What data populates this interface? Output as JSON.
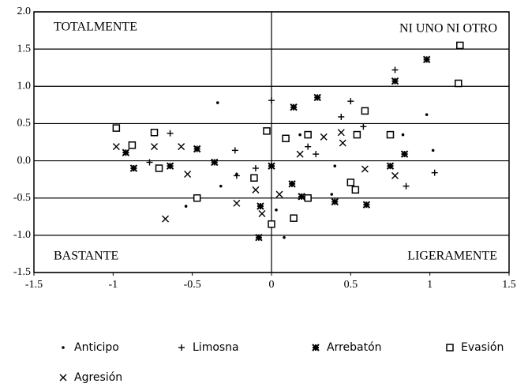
{
  "chart_data": {
    "type": "scatter",
    "annotations": [
      "TOTALMENTE",
      "NI UNO NI OTRO",
      "BASTANTE",
      "LIGERAMENTE"
    ],
    "xlim": [
      -1.5,
      1.5
    ],
    "xticks": [
      -1.5,
      -1,
      -0.5,
      0,
      0.5,
      1,
      1.5
    ],
    "ylim": [
      -1.5,
      2.0
    ],
    "yticks": [
      {
        "value": -1.5,
        "label": "-1.5"
      },
      {
        "value": -1.0,
        "label": "-1.0"
      },
      {
        "value": -0.5,
        "label": "-0.5"
      },
      {
        "value": 0.0,
        "label": "0.0"
      },
      {
        "value": 0.5,
        "label": "0.5"
      },
      {
        "value": 1.0,
        "label": "1.0"
      },
      {
        "value": 1.5,
        "label": "1.5"
      },
      {
        "value": 2.0,
        "label": "2.0"
      }
    ],
    "grid": true,
    "series": [
      {
        "name": "Anticipo",
        "marker": "dot",
        "color": "#000000",
        "x": [
          -0.34,
          0.98,
          1.02,
          0.03,
          -0.54,
          0.08,
          0.4,
          0.83,
          -0.32,
          0.18,
          -0.22,
          0.38
        ],
        "y": [
          0.78,
          0.62,
          0.14,
          -0.66,
          -0.61,
          -1.03,
          -0.07,
          0.35,
          -0.34,
          0.35,
          -0.18,
          -0.45
        ]
      },
      {
        "name": "Limosna",
        "marker": "plus",
        "color": "#000000",
        "x": [
          0,
          0.5,
          0.78,
          1.03,
          0.23,
          -0.64,
          -0.23,
          -0.22,
          -0.1,
          0.28,
          0.44,
          0.85,
          0.58,
          -0.77
        ],
        "y": [
          0.81,
          0.8,
          1.22,
          -0.16,
          0.19,
          0.37,
          0.14,
          -0.2,
          -0.1,
          0.09,
          0.59,
          -0.34,
          0.46,
          -0.02
        ]
      },
      {
        "name": "Arrebatón",
        "marker": "star",
        "color": "#000000",
        "x": [
          0.98,
          0.78,
          0.29,
          0.14,
          -0.92,
          -0.87,
          -0.64,
          -0.47,
          -0.36,
          -0.07,
          -0.08,
          0.13,
          0.4,
          0.6,
          0.84,
          0.75,
          0,
          0.19
        ],
        "y": [
          1.36,
          1.07,
          0.85,
          0.72,
          0.11,
          -0.1,
          -0.07,
          0.16,
          -0.02,
          -0.61,
          -1.03,
          -0.31,
          -0.55,
          -0.59,
          0.09,
          -0.07,
          -0.07,
          -0.48
        ]
      },
      {
        "name": "Evasión",
        "marker": "square",
        "color": "#000000",
        "x": [
          1.19,
          1.18,
          -0.98,
          -0.88,
          -0.74,
          -0.71,
          -0.47,
          -0.03,
          -0.11,
          0,
          0.09,
          0.23,
          0.59,
          0.54,
          0.5,
          0.53,
          0.75,
          0.14,
          0.23
        ],
        "y": [
          1.55,
          1.04,
          0.44,
          0.21,
          0.38,
          -0.1,
          -0.5,
          0.4,
          -0.23,
          -0.85,
          0.3,
          0.35,
          0.67,
          0.35,
          -0.29,
          -0.39,
          0.35,
          -0.77,
          -0.5
        ]
      },
      {
        "name": "Agresión",
        "marker": "x",
        "color": "#000000",
        "x": [
          -0.67,
          -0.98,
          -0.74,
          -0.53,
          -0.22,
          -0.1,
          -0.06,
          0.18,
          0.33,
          0.44,
          0.59,
          0.78,
          0.05,
          0.45,
          -0.57
        ],
        "y": [
          -0.78,
          0.19,
          0.19,
          -0.18,
          -0.57,
          -0.39,
          -0.71,
          0.09,
          0.32,
          0.38,
          -0.11,
          -0.2,
          -0.45,
          0.24,
          0.19
        ]
      }
    ]
  }
}
